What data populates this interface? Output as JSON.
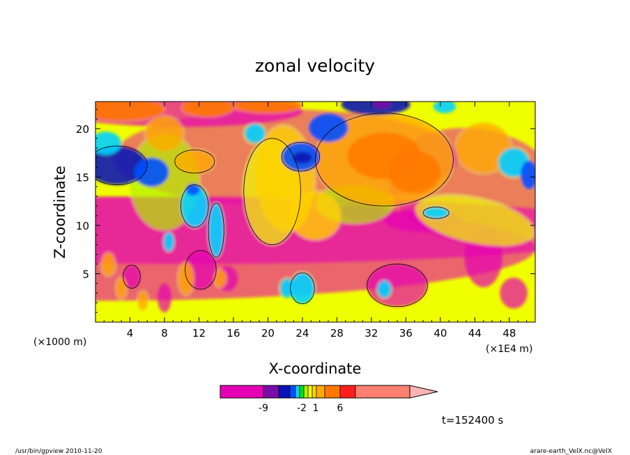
{
  "chart_data": {
    "type": "heatmap",
    "title": "zonal velocity",
    "xlabel": "X-coordinate",
    "ylabel": "Z-coordinate",
    "x_unit_label": "(×1000 m)",
    "x_scale_label": "(×1E4 m)",
    "xlim": [
      0,
      51
    ],
    "ylim": [
      0,
      22.8
    ],
    "xticks": [
      "4",
      "8",
      "12",
      "16",
      "20",
      "24",
      "28",
      "32",
      "36",
      "40",
      "44",
      "48"
    ],
    "yticks": [
      "5",
      "10",
      "15",
      "20"
    ],
    "colorbar": {
      "tick_labels": [
        "-9",
        "-2",
        "1",
        "6"
      ],
      "colors": [
        "#e600b4",
        "#7a0ca8",
        "#0a14b4",
        "#0050ff",
        "#00d2ff",
        "#00e600",
        "#b4f000",
        "#f0ff00",
        "#ffd200",
        "#ffaa00",
        "#ff7800",
        "#ff1e1e",
        "#ff8070",
        "#ffb4b4"
      ]
    },
    "time_label": "t=152400 s",
    "footer_left": "/usr/bin/gpview   2010-11-20",
    "footer_right": "arare-earth_VelX.nc@VelX"
  }
}
